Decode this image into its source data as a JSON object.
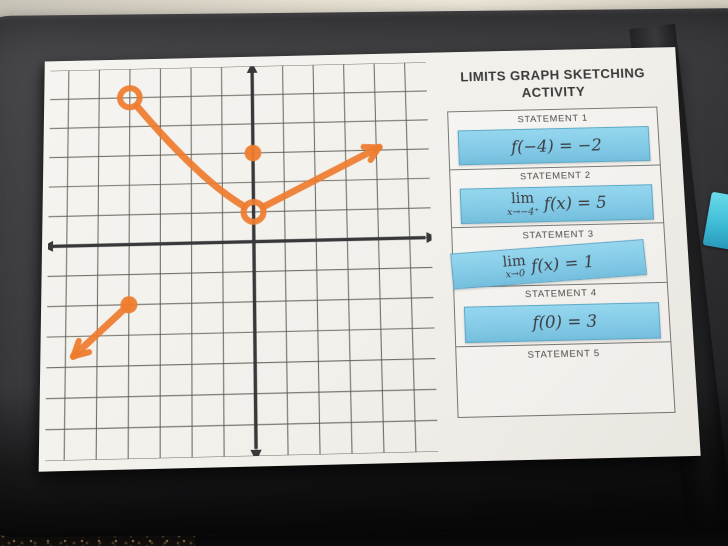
{
  "scene": {
    "wall_color": "#e7e1d3",
    "device_color": "#3a3a3c",
    "paper_color": "#f2f0eb",
    "card_blue": "#84cbe7",
    "marker_orange": "#ee7c2e",
    "teal_tab_color": "#3fbcd6"
  },
  "worksheet": {
    "title_line1": "LIMITS GRAPH SKETCHING",
    "title_line2": "ACTIVITY",
    "statements": [
      {
        "label": "STATEMENT 1",
        "card": {
          "expr": "f(−4) = −2"
        }
      },
      {
        "label": "STATEMENT 2",
        "card": {
          "lim": "lim",
          "sub": "x→−4⁺",
          "expr": "f(x) = 5"
        }
      },
      {
        "label": "STATEMENT 3",
        "card": {
          "lim": "lim",
          "sub": "x→0",
          "expr": "f(x) = 1"
        }
      },
      {
        "label": "STATEMENT 4",
        "card": {
          "expr": "f(0) = 3"
        }
      },
      {
        "label": "STATEMENT 5"
      }
    ]
  },
  "chart_data": {
    "type": "line",
    "title": "",
    "xlabel": "",
    "ylabel": "",
    "x_range": [
      -6.6,
      5.7
    ],
    "y_range": [
      -7.0,
      6.0
    ],
    "grid": true,
    "grid_step": 1,
    "axes_through_origin": true,
    "marker_color": "#ee7c2e",
    "axis_color": "#38383b",
    "grid_color": "#5a5a52",
    "segments": [
      {
        "points": [
          [
            -4,
            5
          ],
          [
            -1.7,
            2.1
          ],
          [
            0,
            1
          ]
        ],
        "open_start": true,
        "open_end": true
      },
      {
        "points": [
          [
            0,
            1
          ],
          [
            4.1,
            3.1
          ]
        ],
        "open_start": true,
        "arrow_end": true
      },
      {
        "points": [
          [
            -4,
            -2
          ],
          [
            -5.75,
            -3.65
          ]
        ],
        "arrow_end": true
      }
    ],
    "open_points": [
      [
        -4,
        5
      ],
      [
        0,
        1
      ]
    ],
    "closed_points": [
      [
        0,
        3
      ],
      [
        -4,
        -2
      ]
    ]
  }
}
